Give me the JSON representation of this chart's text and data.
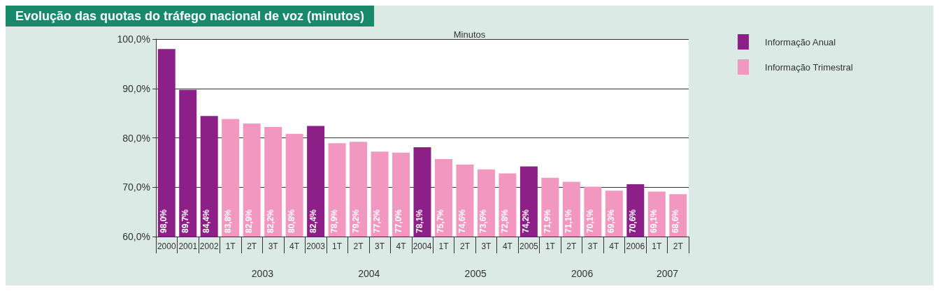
{
  "chart_data": {
    "type": "bar",
    "title": "Evolução das quotas do tráfego nacional de voz (minutos)",
    "subtitle": "Minutos",
    "categories": [
      "2000",
      "2001",
      "2002",
      "1T",
      "2T",
      "3T",
      "4T",
      "2003",
      "1T",
      "2T",
      "3T",
      "4T",
      "2004",
      "1T",
      "2T",
      "3T",
      "4T",
      "2005",
      "1T",
      "2T",
      "3T",
      "4T",
      "2006",
      "1T",
      "2T"
    ],
    "series": [
      {
        "name": "Informação Anual",
        "color": "#8c1f88",
        "values": [
          98.0,
          89.7,
          84.4,
          null,
          null,
          null,
          null,
          82.4,
          null,
          null,
          null,
          null,
          78.1,
          null,
          null,
          null,
          null,
          74.2,
          null,
          null,
          null,
          null,
          70.6,
          null,
          null
        ],
        "value_labels": [
          "98,0%",
          "89,7%",
          "84,4%",
          null,
          null,
          null,
          null,
          "82,4%",
          null,
          null,
          null,
          null,
          "78,1%",
          null,
          null,
          null,
          null,
          "74,2%",
          null,
          null,
          null,
          null,
          "70,6%",
          null,
          null
        ]
      },
      {
        "name": "Informação Trimestral",
        "color": "#f298c0",
        "values": [
          null,
          null,
          null,
          83.8,
          82.9,
          82.2,
          80.8,
          null,
          78.9,
          79.2,
          77.2,
          77.0,
          null,
          75.7,
          74.6,
          73.6,
          72.8,
          null,
          71.9,
          71.1,
          70.1,
          69.3,
          null,
          69.1,
          68.6
        ],
        "value_labels": [
          null,
          null,
          null,
          "83,8%",
          "82,9%",
          "82,2%",
          "80,8%",
          null,
          "78,9%",
          "79,2%",
          "77,2%",
          "77,0%",
          null,
          "75,7%",
          "74,6%",
          "73,6%",
          "72,8%",
          null,
          "71,9%",
          "71,1%",
          "70,1%",
          "69,3%",
          null,
          "69,1%",
          "68,6%"
        ]
      }
    ],
    "annotations": [
      "2003",
      "2004",
      "2005",
      "2006",
      "2007"
    ],
    "ylim": [
      60,
      100
    ],
    "yticks": [
      {
        "value": 60,
        "label": "60,0%"
      },
      {
        "value": 70,
        "label": "70,0%"
      },
      {
        "value": 80,
        "label": "80,0%"
      },
      {
        "value": 90,
        "label": "90,0%"
      },
      {
        "value": 100,
        "label": "100,0%"
      }
    ],
    "grid": "y",
    "legend": "top right"
  }
}
